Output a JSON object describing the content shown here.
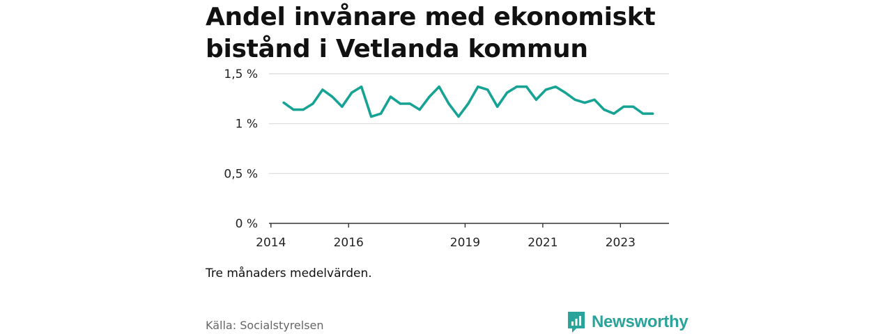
{
  "title_lines": [
    "Andel invånare med ekonomiskt",
    "bistånd i Vetlanda kommun"
  ],
  "note": "Tre månaders medelvärden.",
  "source": "Källa: Socialstyrelsen",
  "brand": {
    "name": "Newsworthy",
    "icon": "newsworthy-logo-icon",
    "color": "#2aa39a"
  },
  "colors": {
    "line": "#16a394",
    "grid": "#d9d9d9",
    "axis": "#333333"
  },
  "chart_data": {
    "type": "line",
    "title": "Andel invånare med ekonomiskt bistånd i Vetlanda kommun",
    "xlabel": "",
    "ylabel": "",
    "ylim": [
      0,
      1.5
    ],
    "xlim": [
      2013.95,
      2024.25
    ],
    "grid": true,
    "yticks": [
      {
        "value": 0,
        "label": "0 %"
      },
      {
        "value": 0.5,
        "label": "0,5 %"
      },
      {
        "value": 1,
        "label": "1 %"
      },
      {
        "value": 1.5,
        "label": "1,5 %"
      }
    ],
    "xticks": [
      {
        "value": 2014,
        "label": "2014"
      },
      {
        "value": 2016,
        "label": "2016"
      },
      {
        "value": 2019,
        "label": "2019"
      },
      {
        "value": 2021,
        "label": "2021"
      },
      {
        "value": 2023,
        "label": "2023"
      }
    ],
    "series": [
      {
        "name": "Andel invånare med ekonomiskt bistånd",
        "x": [
          2014.33,
          2014.58,
          2014.83,
          2015.08,
          2015.33,
          2015.58,
          2015.83,
          2016.08,
          2016.33,
          2016.58,
          2016.83,
          2017.08,
          2017.33,
          2017.58,
          2017.83,
          2018.08,
          2018.33,
          2018.58,
          2018.83,
          2019.08,
          2019.33,
          2019.58,
          2019.83,
          2020.08,
          2020.33,
          2020.58,
          2020.83,
          2021.08,
          2021.33,
          2021.58,
          2021.83,
          2022.08,
          2022.33,
          2022.58,
          2022.83,
          2023.08,
          2023.33,
          2023.58,
          2023.83
        ],
        "values": [
          1.21,
          1.14,
          1.14,
          1.2,
          1.34,
          1.27,
          1.17,
          1.31,
          1.37,
          1.07,
          1.1,
          1.27,
          1.2,
          1.2,
          1.14,
          1.27,
          1.37,
          1.2,
          1.07,
          1.2,
          1.37,
          1.34,
          1.17,
          1.31,
          1.37,
          1.37,
          1.24,
          1.34,
          1.37,
          1.31,
          1.24,
          1.21,
          1.24,
          1.14,
          1.1,
          1.17,
          1.17,
          1.1,
          1.1
        ]
      }
    ]
  }
}
